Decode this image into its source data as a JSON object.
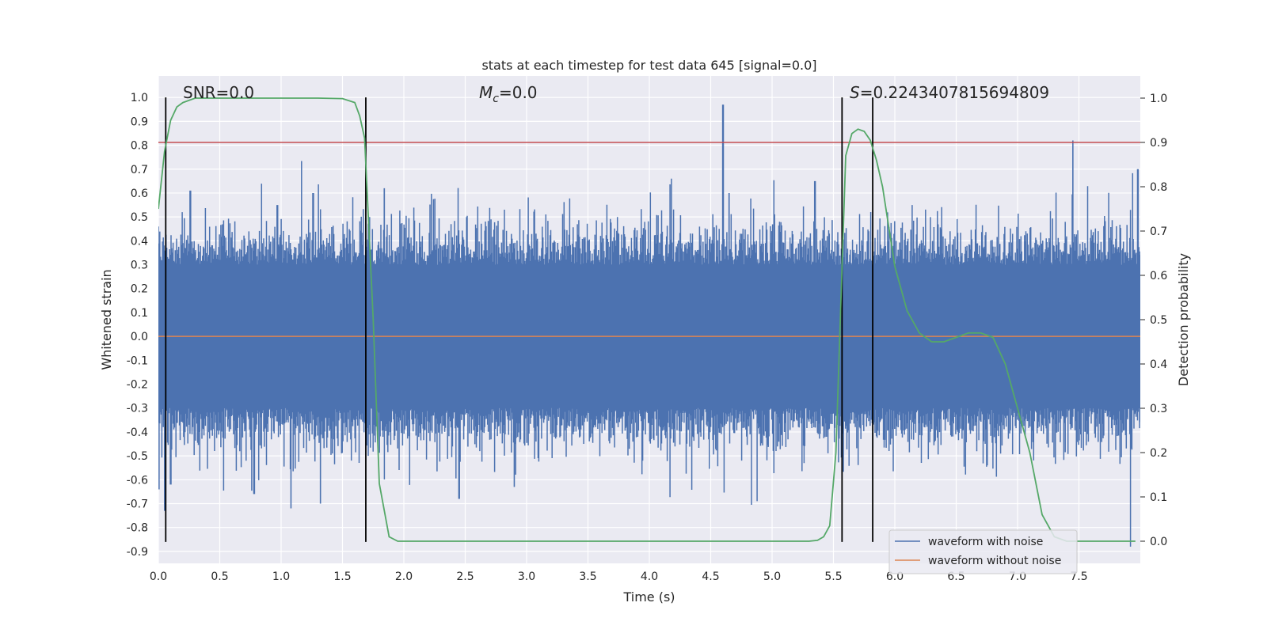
{
  "chart_data": {
    "type": "line",
    "title": "stats at each timestep for test data 645 [signal=0.0]",
    "xlabel": "Time (s)",
    "ylabel_left": "Whitened strain",
    "ylabel_right": "Detection probability",
    "xlim": [
      0.0,
      8.0
    ],
    "ylim_left": [
      -0.95,
      1.09
    ],
    "ylim_right": [
      0.0,
      1.0
    ],
    "grid": true,
    "xticks": [
      "0.0",
      "0.5",
      "1.0",
      "1.5",
      "2.0",
      "2.5",
      "3.0",
      "3.5",
      "4.0",
      "4.5",
      "5.0",
      "5.5",
      "6.0",
      "6.5",
      "7.0",
      "7.5"
    ],
    "yticks_left": [
      "1.0",
      "0.9",
      "0.8",
      "0.7",
      "0.6",
      "0.5",
      "0.4",
      "0.3",
      "0.2",
      "0.1",
      "0.0",
      "-0.1",
      "-0.2",
      "-0.3",
      "-0.4",
      "-0.5",
      "-0.6",
      "-0.7",
      "-0.8",
      "-0.9"
    ],
    "yticks_right": [
      "1.0",
      "0.9",
      "0.8",
      "0.7",
      "0.6",
      "0.5",
      "0.4",
      "0.3",
      "0.2",
      "0.1",
      "0.0"
    ],
    "annotations": {
      "snr": "SNR=0.0",
      "mc_symbol": "M",
      "mc_sub": "c",
      "mc_value": "=0.0",
      "s_symbol": "S",
      "s_value": "=0.2243407815694809"
    },
    "legend": {
      "placement": "lower-right",
      "entries": [
        "waveform with noise",
        "waveform without noise"
      ]
    },
    "series": [
      {
        "name": "waveform with noise",
        "axis": "left",
        "color": "#4c72b0",
        "style": "noise",
        "envelope_typical": 0.3,
        "peaks": [
          {
            "x": 0.05,
            "y": -0.73
          },
          {
            "x": 0.1,
            "y": -0.62
          },
          {
            "x": 0.26,
            "y": 0.61
          },
          {
            "x": 0.78,
            "y": -0.66
          },
          {
            "x": 0.97,
            "y": 0.55
          },
          {
            "x": 1.08,
            "y": -0.72
          },
          {
            "x": 1.26,
            "y": 0.6
          },
          {
            "x": 1.32,
            "y": -0.7
          },
          {
            "x": 1.84,
            "y": 0.62
          },
          {
            "x": 2.45,
            "y": -0.68
          },
          {
            "x": 2.9,
            "y": -0.63
          },
          {
            "x": 4.6,
            "y": 0.97
          },
          {
            "x": 4.65,
            "y": 0.6
          },
          {
            "x": 5.35,
            "y": 0.65
          },
          {
            "x": 7.45,
            "y": 0.82
          },
          {
            "x": 7.92,
            "y": -0.88
          },
          {
            "x": 7.98,
            "y": 0.7
          }
        ]
      },
      {
        "name": "waveform without noise",
        "axis": "left",
        "color": "#dd8452",
        "x": [
          0.0,
          8.0
        ],
        "y": [
          0.0,
          0.0
        ]
      },
      {
        "name": "detection probability",
        "axis": "right",
        "color": "#55a868",
        "x": [
          0.0,
          0.05,
          0.1,
          0.15,
          0.2,
          0.3,
          0.4,
          0.5,
          0.8,
          1.0,
          1.3,
          1.5,
          1.6,
          1.64,
          1.68,
          1.75,
          1.8,
          1.88,
          1.95,
          2.5,
          3.0,
          4.0,
          5.0,
          5.2,
          5.3,
          5.37,
          5.42,
          5.47,
          5.52,
          5.6,
          5.65,
          5.7,
          5.75,
          5.8,
          5.85,
          5.9,
          6.0,
          6.1,
          6.2,
          6.3,
          6.4,
          6.5,
          6.6,
          6.7,
          6.8,
          6.9,
          7.0,
          7.1,
          7.2,
          7.3,
          7.4,
          7.5,
          7.7,
          7.96
        ],
        "y": [
          0.75,
          0.88,
          0.95,
          0.98,
          0.99,
          1.0,
          1.0,
          1.0,
          1.0,
          1.0,
          1.0,
          0.999,
          0.99,
          0.96,
          0.91,
          0.5,
          0.13,
          0.01,
          0.0,
          0.0,
          0.0,
          0.0,
          0.0,
          0.0,
          0.0,
          0.002,
          0.01,
          0.035,
          0.2,
          0.87,
          0.92,
          0.93,
          0.925,
          0.905,
          0.86,
          0.8,
          0.62,
          0.52,
          0.47,
          0.45,
          0.45,
          0.46,
          0.47,
          0.47,
          0.46,
          0.4,
          0.3,
          0.2,
          0.06,
          0.01,
          0.0,
          0.0,
          0.0,
          0.0
        ]
      }
    ],
    "threshold_line": {
      "axis": "right",
      "y": 0.9,
      "color": "#c44e52"
    },
    "vertical_lines": {
      "x": [
        0.06,
        1.69,
        5.57,
        5.82
      ],
      "color": "#000000",
      "y_range": [
        -0.86,
        1.0
      ]
    }
  }
}
